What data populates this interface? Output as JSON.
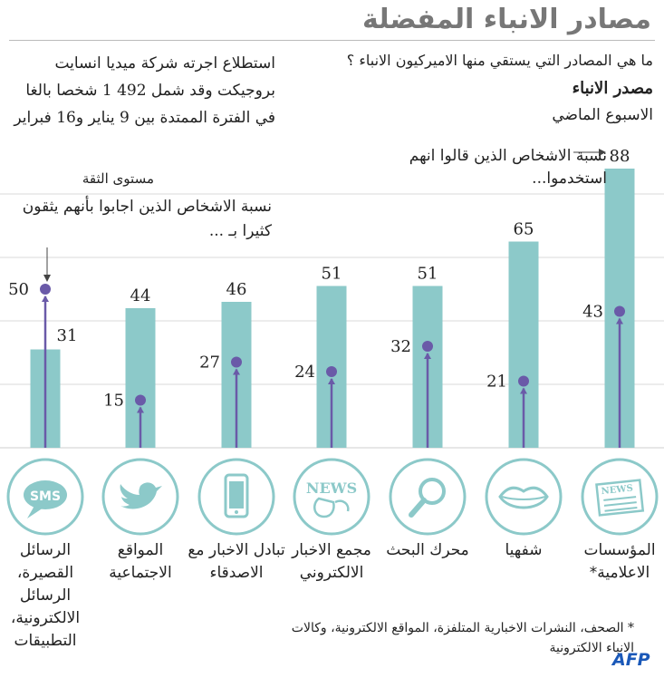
{
  "title": "مصادر الانباء المفضلة",
  "header": {
    "question": "ما هي المصادر التي يستقي منها الاميركيون الانباء ؟",
    "source_label": "مصدر الانباء",
    "period": "الاسبوع الماضي",
    "survey_note": "استطلاع اجرته شركة ميديا انسايت بروجيكت وقد شمل 492 1 شخصا بالغا في الفترة الممتدة بين 9 يناير و16 فبراير"
  },
  "notes": {
    "reach": "نسبة الاشخاص الذين قالوا انهم استخدموا...",
    "trust_title": "مستوى الثقة",
    "trust": "نسبة الاشخاص الذين اجابوا بأنهم يثقون كثيرا بـ ..."
  },
  "colors": {
    "bar": "#8cc9c9",
    "dot": "#6a5aa8",
    "arrow_line": "#6a5aa8",
    "circle": "#8cc9c9",
    "title": "#777777",
    "agency": "#1a58b8"
  },
  "chart_data": {
    "type": "bar",
    "categories": [
      "الرسائل القصيرة، الرسائل الالكترونية، التطبيقات",
      "المواقع الاجتماعية",
      "تبادل الاخبار مع الاصدقاء",
      "مجمع الاخبار الالكتروني",
      "محرك البحث",
      "شفهيا",
      "المؤسسات الاعلامية*"
    ],
    "series": [
      {
        "name": "نسبة الاشخاص الذين قالوا انهم استخدموا...",
        "values": [
          31,
          44,
          46,
          51,
          51,
          65,
          88
        ]
      },
      {
        "name": "نسبة الاشخاص الذين اجابوا بأنهم يثقون كثيرا بـ ...",
        "values": [
          50,
          15,
          27,
          24,
          32,
          21,
          43
        ]
      }
    ],
    "icons": [
      "sms-icon",
      "twitter-bird-icon",
      "smartphone-icon",
      "news-aggregator-icon",
      "magnifier-icon",
      "lips-icon",
      "newspaper-icon"
    ],
    "ylim": [
      0,
      100
    ]
  },
  "footnote": "* الصحف، النشرات الاخبارية المتلفزة، المواقع الالكترونية، وكالات الانباء الالكترونية",
  "agency": "AFP"
}
